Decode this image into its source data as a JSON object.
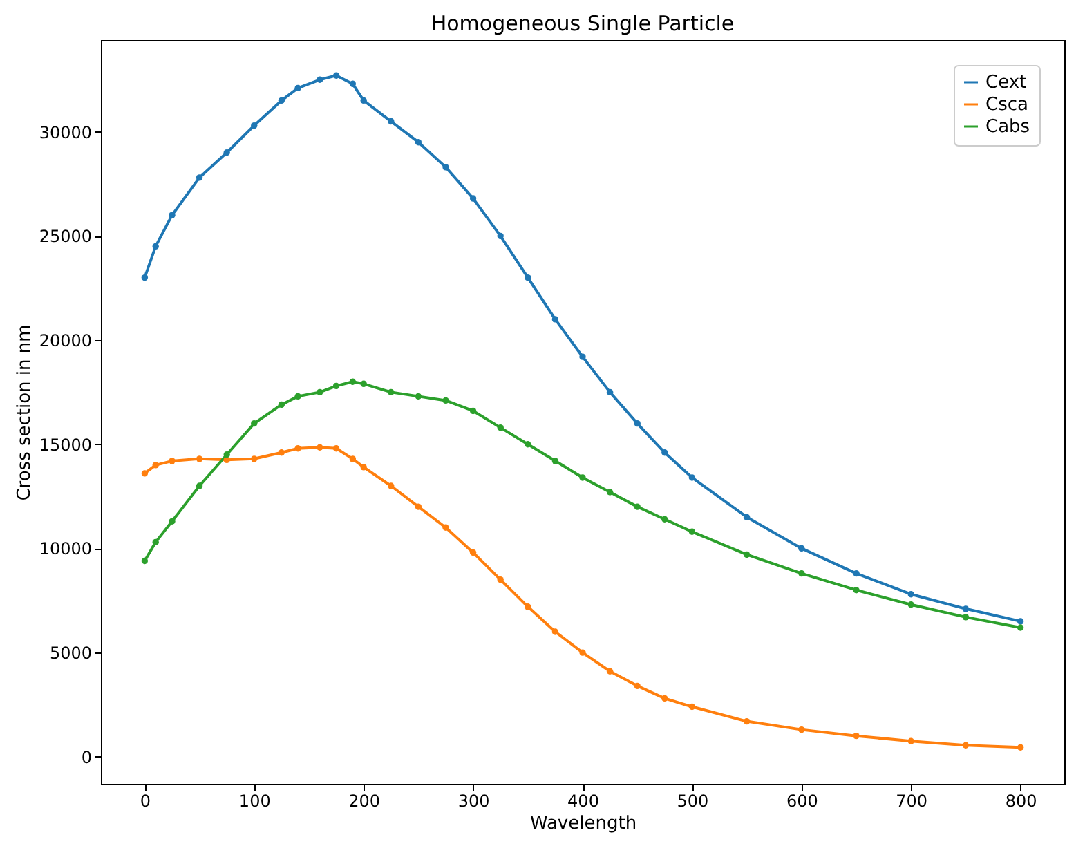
{
  "chart_data": {
    "type": "line",
    "title": "Homogeneous Single Particle",
    "xlabel": "Wavelength",
    "ylabel": "Cross section in nm",
    "xlim": [
      -40,
      840
    ],
    "ylim": [
      -1300,
      34400
    ],
    "xticks": [
      0,
      100,
      200,
      300,
      400,
      500,
      600,
      700,
      800
    ],
    "yticks": [
      0,
      5000,
      10000,
      15000,
      20000,
      25000,
      30000
    ],
    "grid": false,
    "legend": "top right",
    "marker": "circle",
    "line_style": "solid",
    "x": [
      0,
      10,
      25,
      50,
      75,
      100,
      125,
      140,
      160,
      175,
      190,
      200,
      225,
      250,
      275,
      300,
      325,
      350,
      375,
      400,
      425,
      450,
      475,
      500,
      550,
      600,
      650,
      700,
      750,
      800
    ],
    "series": [
      {
        "name": "Cext",
        "color": "#1f77b4",
        "values": [
          23000,
          24500,
          26000,
          27800,
          29000,
          30300,
          31500,
          32100,
          32500,
          32700,
          32300,
          31500,
          30500,
          29500,
          28300,
          26800,
          25000,
          23000,
          21000,
          19200,
          17500,
          16000,
          14600,
          13400,
          11500,
          10000,
          8800,
          7800,
          7100,
          6500
        ]
      },
      {
        "name": "Csca",
        "color": "#ff7f0e",
        "values": [
          13600,
          14000,
          14200,
          14300,
          14250,
          14300,
          14600,
          14800,
          14850,
          14800,
          14300,
          13900,
          13000,
          12000,
          11000,
          9800,
          8500,
          7200,
          6000,
          5000,
          4100,
          3400,
          2800,
          2400,
          1700,
          1300,
          1000,
          750,
          550,
          450
        ]
      },
      {
        "name": "Cabs",
        "color": "#2ca02c",
        "values": [
          9400,
          10300,
          11300,
          13000,
          14500,
          16000,
          16900,
          17300,
          17500,
          17800,
          18000,
          17900,
          17500,
          17300,
          17100,
          16600,
          15800,
          15000,
          14200,
          13400,
          12700,
          12000,
          11400,
          10800,
          9700,
          8800,
          8000,
          7300,
          6700,
          6200
        ]
      }
    ]
  }
}
